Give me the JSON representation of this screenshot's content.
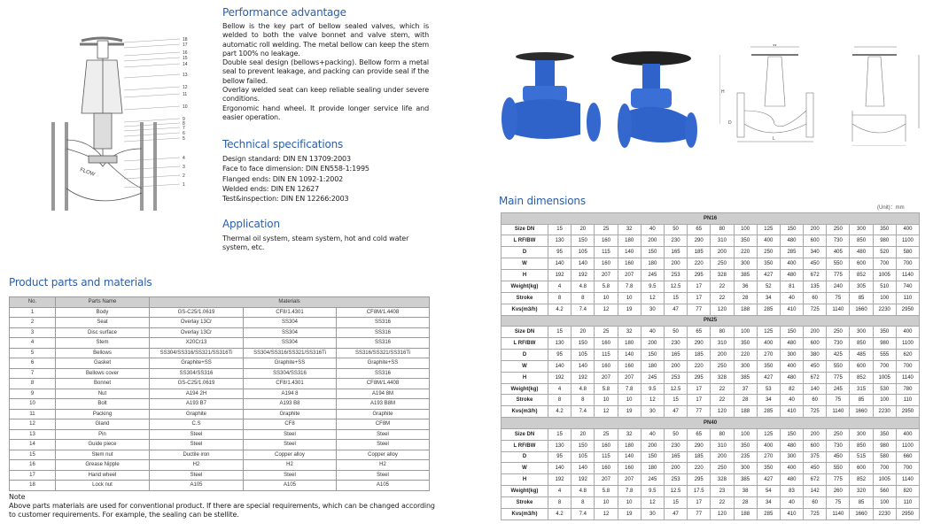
{
  "performance": {
    "title": "Performance advantage",
    "paragraphs": [
      "Bellow is the key part of bellow sealed valves, which is welded to both the valve bonnet and valve stem, with automatic roll welding. The metal bellow can keep the stem part 100% no leakage.",
      "Double seal design (bellows+packing). Bellow form a metal seal to prevent leakage, and packing can provide seal if the bellow failed.",
      "Overlay welded seat can keep reliable sealing under severe conditions.",
      "Ergonomic hand wheel. It provide longer service life and easier operation."
    ]
  },
  "technical": {
    "title": "Technical specifications",
    "lines": [
      "Design standard: DIN EN 13709:2003",
      "Face to face dimension: DIN EN558-1:1995",
      "Flanged ends: DIN EN 1092-1:2002",
      "Welded ends: DIN EN 12627",
      "Test&inspection: DIN EN 12266:2003"
    ]
  },
  "application": {
    "title": "Application",
    "text": "Thermal oil system, steam system, hot and cold water system, etc."
  },
  "drawing": {
    "labels": [
      "18",
      "17",
      "16",
      "15",
      "14",
      "13",
      "12",
      "11",
      "10",
      "9",
      "8",
      "7",
      "6",
      "5",
      "4",
      "3",
      "2",
      "1"
    ],
    "flow_label": "FLOW",
    "dim_labels": {
      "w": "W",
      "h": "H",
      "l": "L",
      "d": "D"
    }
  },
  "parts": {
    "title": "Product parts and materials",
    "headers": [
      "No.",
      "Parts Name",
      "Materials"
    ],
    "rows": [
      [
        "1",
        "Body",
        "GS-C25/1.0619",
        "CF8/1.4301",
        "CF8M/1.4408"
      ],
      [
        "2",
        "Seat",
        "Overlay 13Cr",
        "SS304",
        "SS316"
      ],
      [
        "3",
        "Disc surface",
        "Overlay 13Cr",
        "SS304",
        "SS316"
      ],
      [
        "4",
        "Stem",
        "X20Cr13",
        "SS304",
        "SS316"
      ],
      [
        "5",
        "Bellows",
        "SS304/SS316/SS321/SS316Ti",
        "SS304/SS316/SS321/SS316Ti",
        "SS316/SS321/SS316Ti"
      ],
      [
        "6",
        "Gasket",
        "Graphite+SS",
        "Graphite+SS",
        "Graphite+SS"
      ],
      [
        "7",
        "Bellows cover",
        "SS304/SS316",
        "SS304/SS316",
        "SS316"
      ],
      [
        "8",
        "Bonnet",
        "GS-C25/1.0619",
        "CF8/1.4301",
        "CF8M/1.4408"
      ],
      [
        "9",
        "Nut",
        "A194 2H",
        "A194 8",
        "A194 8M"
      ],
      [
        "10",
        "Bolt",
        "A193 B7",
        "A193 B8",
        "A193 B8M"
      ],
      [
        "11",
        "Packing",
        "Graphite",
        "Graphite",
        "Graphite"
      ],
      [
        "12",
        "Gland",
        "C.S",
        "CF8",
        "CF8M"
      ],
      [
        "13",
        "Pin",
        "Steel",
        "Steel",
        "Steel"
      ],
      [
        "14",
        "Guide piece",
        "Steel",
        "Steel",
        "Steel"
      ],
      [
        "15",
        "Stem nut",
        "Ductile iron",
        "Copper alloy",
        "Copper alloy"
      ],
      [
        "16",
        "Grease Nipple",
        "H2",
        "H2",
        "H2"
      ],
      [
        "17",
        "Hand wheel",
        "Steel",
        "Steel",
        "Steel"
      ],
      [
        "18",
        "Lock nut",
        "A105",
        "A105",
        "A105"
      ]
    ]
  },
  "note": {
    "title": "Note",
    "text": "Above parts materials are used for conventional product. If there are special requirements, which can be changed according to customer requirements. For example, the sealing can be stellite."
  },
  "dimensions": {
    "title": "Main dimensions",
    "unit": "(Unit)：mm",
    "blocks": [
      {
        "pn": "PN16",
        "rows": [
          [
            "Size DN",
            "15",
            "20",
            "25",
            "32",
            "40",
            "50",
            "65",
            "80",
            "100",
            "125",
            "150",
            "200",
            "250",
            "300",
            "350",
            "400"
          ],
          [
            "L RF/BW",
            "130",
            "150",
            "160",
            "180",
            "200",
            "230",
            "290",
            "310",
            "350",
            "400",
            "480",
            "600",
            "730",
            "850",
            "980",
            "1100"
          ],
          [
            "D",
            "95",
            "105",
            "115",
            "140",
            "150",
            "165",
            "185",
            "200",
            "220",
            "250",
            "285",
            "340",
            "405",
            "480",
            "520",
            "580"
          ],
          [
            "W",
            "140",
            "140",
            "160",
            "160",
            "180",
            "200",
            "220",
            "250",
            "300",
            "350",
            "400",
            "450",
            "550",
            "600",
            "700",
            "700"
          ],
          [
            "H",
            "192",
            "192",
            "207",
            "207",
            "245",
            "253",
            "295",
            "328",
            "385",
            "427",
            "480",
            "672",
            "775",
            "852",
            "1005",
            "1140"
          ],
          [
            "Weight(kg)",
            "4",
            "4.8",
            "5.8",
            "7.8",
            "9.5",
            "12.5",
            "17",
            "22",
            "36",
            "52",
            "81",
            "135",
            "240",
            "305",
            "510",
            "740"
          ],
          [
            "Stroke",
            "8",
            "8",
            "10",
            "10",
            "12",
            "15",
            "17",
            "22",
            "28",
            "34",
            "40",
            "60",
            "75",
            "85",
            "100",
            "110"
          ],
          [
            "Kvs(m3/h)",
            "4.2",
            "7.4",
            "12",
            "19",
            "30",
            "47",
            "77",
            "120",
            "188",
            "285",
            "410",
            "725",
            "1140",
            "1660",
            "2230",
            "2950"
          ]
        ]
      },
      {
        "pn": "PN25",
        "rows": [
          [
            "Size DN",
            "15",
            "20",
            "25",
            "32",
            "40",
            "50",
            "65",
            "80",
            "100",
            "125",
            "150",
            "200",
            "250",
            "300",
            "350",
            "400"
          ],
          [
            "L RF/BW",
            "130",
            "150",
            "160",
            "180",
            "200",
            "230",
            "290",
            "310",
            "350",
            "400",
            "480",
            "600",
            "730",
            "850",
            "980",
            "1100"
          ],
          [
            "D",
            "95",
            "105",
            "115",
            "140",
            "150",
            "165",
            "185",
            "200",
            "220",
            "270",
            "300",
            "380",
            "425",
            "485",
            "555",
            "620"
          ],
          [
            "W",
            "140",
            "140",
            "160",
            "160",
            "180",
            "200",
            "220",
            "250",
            "300",
            "350",
            "400",
            "450",
            "550",
            "600",
            "700",
            "700"
          ],
          [
            "H",
            "192",
            "192",
            "207",
            "207",
            "245",
            "253",
            "295",
            "328",
            "385",
            "427",
            "480",
            "672",
            "775",
            "852",
            "1005",
            "1140"
          ],
          [
            "Weight(kg)",
            "4",
            "4.8",
            "5.8",
            "7.8",
            "9.5",
            "12.5",
            "17",
            "22",
            "37",
            "53",
            "82",
            "140",
            "245",
            "315",
            "530",
            "780"
          ],
          [
            "Stroke",
            "8",
            "8",
            "10",
            "10",
            "12",
            "15",
            "17",
            "22",
            "28",
            "34",
            "40",
            "60",
            "75",
            "85",
            "100",
            "110"
          ],
          [
            "Kvs(m3/h)",
            "4.2",
            "7.4",
            "12",
            "19",
            "30",
            "47",
            "77",
            "120",
            "188",
            "285",
            "410",
            "725",
            "1140",
            "1660",
            "2230",
            "2950"
          ]
        ]
      },
      {
        "pn": "PN40",
        "rows": [
          [
            "Size DN",
            "15",
            "20",
            "25",
            "32",
            "40",
            "50",
            "65",
            "80",
            "100",
            "125",
            "150",
            "200",
            "250",
            "300",
            "350",
            "400"
          ],
          [
            "L RF/BW",
            "130",
            "150",
            "160",
            "180",
            "200",
            "230",
            "290",
            "310",
            "350",
            "400",
            "480",
            "600",
            "730",
            "850",
            "980",
            "1100"
          ],
          [
            "D",
            "95",
            "105",
            "115",
            "140",
            "150",
            "165",
            "185",
            "200",
            "235",
            "270",
            "300",
            "375",
            "450",
            "515",
            "580",
            "660"
          ],
          [
            "W",
            "140",
            "140",
            "160",
            "160",
            "180",
            "200",
            "220",
            "250",
            "300",
            "350",
            "400",
            "450",
            "550",
            "600",
            "700",
            "700"
          ],
          [
            "H",
            "192",
            "192",
            "207",
            "207",
            "245",
            "253",
            "295",
            "328",
            "385",
            "427",
            "480",
            "672",
            "775",
            "852",
            "1005",
            "1140"
          ],
          [
            "Weight(kg)",
            "4",
            "4.8",
            "5.8",
            "7.8",
            "9.5",
            "12.5",
            "17.5",
            "23",
            "38",
            "54",
            "83",
            "142",
            "260",
            "320",
            "560",
            "820"
          ],
          [
            "Stroke",
            "8",
            "8",
            "10",
            "10",
            "12",
            "15",
            "17",
            "22",
            "28",
            "34",
            "40",
            "60",
            "75",
            "85",
            "100",
            "110"
          ],
          [
            "Kvs(m3/h)",
            "4.2",
            "7.4",
            "12",
            "19",
            "30",
            "47",
            "77",
            "120",
            "188",
            "285",
            "410",
            "725",
            "1140",
            "1660",
            "2230",
            "2950"
          ]
        ]
      }
    ]
  },
  "colors": {
    "heading": "#2a5ea8",
    "valve_blue": "#2f63c9",
    "table_header": "#cdcdcd"
  }
}
